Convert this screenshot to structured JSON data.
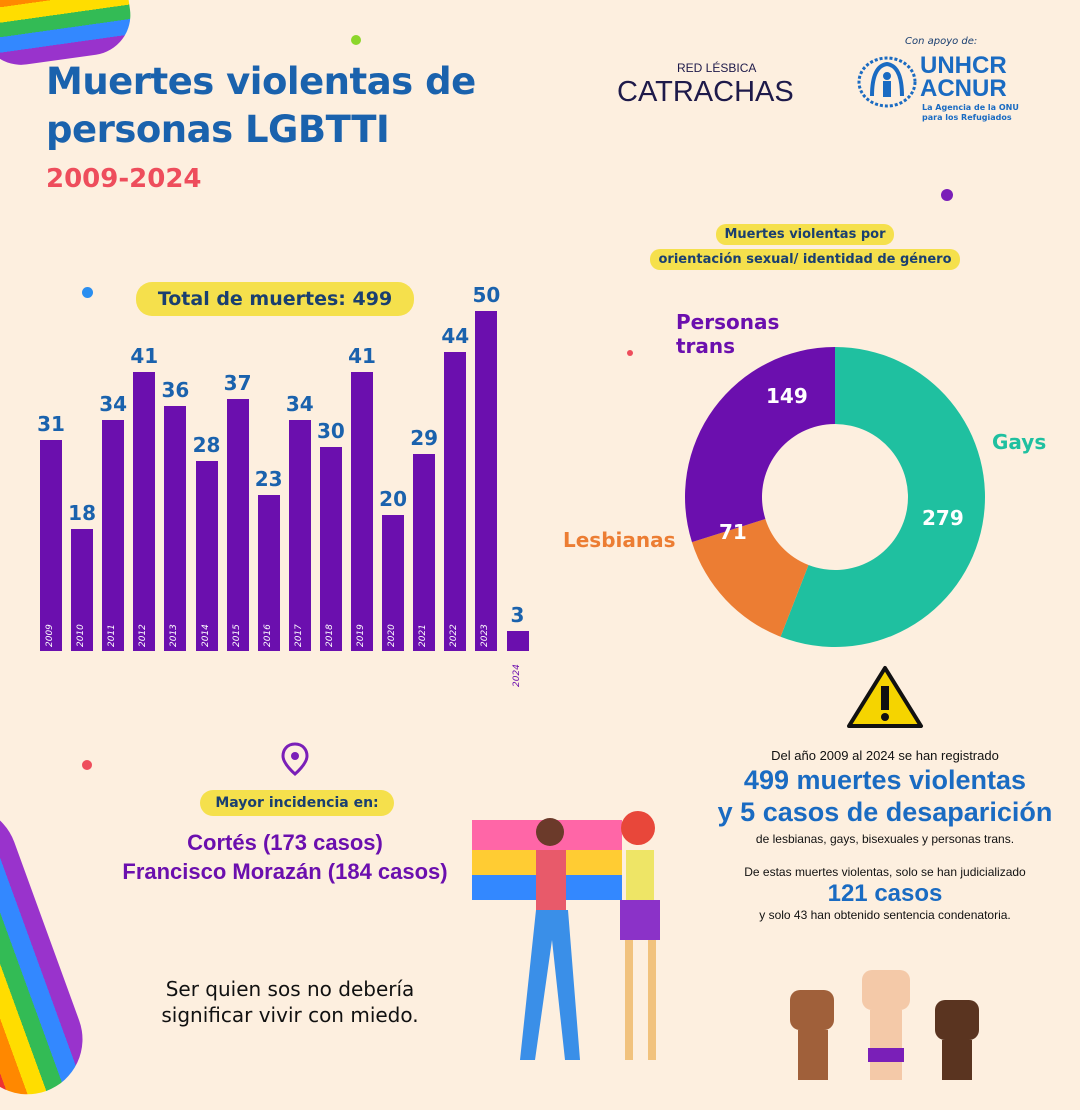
{
  "header": {
    "title_line1": "Muertes violentas de",
    "title_line2": "personas LGBTTI",
    "years": "2009-2024"
  },
  "logos": {
    "catrachas_top": "RED LÉSBICA",
    "catrachas": "CATRACHAS",
    "apoyo": "Con apoyo de:",
    "unhcr": "UNHCR",
    "acnur": "ACNUR",
    "unhcr_sub1": "La Agencia de la ONU",
    "unhcr_sub2": "para los Refugiados"
  },
  "chart_data": [
    {
      "type": "bar",
      "title": "Total de muertes: 499",
      "categories": [
        "2009",
        "2010",
        "2011",
        "2012",
        "2013",
        "2014",
        "2015",
        "2016",
        "2017",
        "2018",
        "2019",
        "2020",
        "2021",
        "2022",
        "2023",
        "2024"
      ],
      "values": [
        31,
        18,
        34,
        41,
        36,
        28,
        37,
        23,
        34,
        30,
        41,
        20,
        29,
        44,
        50,
        3
      ],
      "ylim": [
        0,
        50
      ],
      "color": "#6b0fae"
    },
    {
      "type": "pie",
      "title_line1": "Muertes violentas por",
      "title_line2": "orientación sexual/ identidad de género",
      "labels": [
        "Gays",
        "Lesbianas",
        "Personas trans"
      ],
      "values": [
        279,
        71,
        149
      ],
      "colors": [
        "#1fc0a0",
        "#ec7d33",
        "#6b0fae"
      ]
    }
  ],
  "incidence": {
    "label": "Mayor incidencia en:",
    "line1": "Cortés (173 casos)",
    "line2": "Francisco Morazán (184 casos)"
  },
  "slogan": {
    "line1": "Ser quien sos no debería",
    "line2": "significar vivir con miedo."
  },
  "summary": {
    "l1": "Del año 2009 al 2024 se han registrado",
    "l2": "499 muertes violentas",
    "l3": "y 5 casos de desaparición",
    "l4": "de lesbianas, gays, bisexuales y personas trans.",
    "l5": "De estas muertes violentas, solo se han judicializado",
    "l6": "121 casos",
    "l7": "y solo 43 han obtenido sentencia condenatoria."
  }
}
